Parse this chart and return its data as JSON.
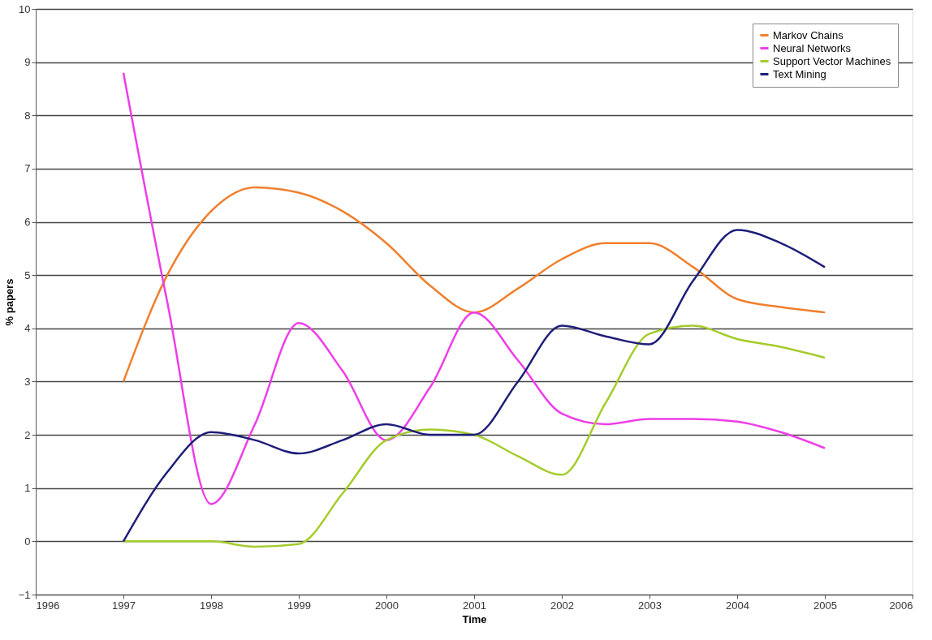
{
  "chart_data": {
    "type": "line",
    "xlabel": "Time",
    "ylabel": "% papers",
    "x": [
      1997,
      1997.5,
      1998,
      1998.5,
      1999,
      1999.5,
      2000,
      2000.5,
      2001,
      2001.5,
      2002,
      2002.5,
      2003,
      2003.5,
      2004,
      2004.5,
      2005
    ],
    "series": [
      {
        "name": "Markov Chains",
        "color": "#f07f2c",
        "values": [
          3.0,
          5.0,
          6.2,
          6.65,
          6.55,
          6.2,
          5.6,
          4.8,
          4.3,
          4.75,
          5.3,
          5.6,
          5.6,
          5.15,
          4.55,
          4.4,
          4.3
        ]
      },
      {
        "name": "Neural Networks",
        "color": "#ee3ee8",
        "values": [
          8.8,
          4.5,
          0.7,
          2.2,
          4.1,
          3.2,
          1.9,
          2.9,
          4.3,
          3.4,
          2.4,
          2.2,
          2.3,
          2.3,
          2.25,
          2.05,
          1.75
        ]
      },
      {
        "name": "Support Vector Machines",
        "color": "#a4cc2c",
        "values": [
          0,
          0,
          0,
          -0.1,
          -0.05,
          0.9,
          1.9,
          2.1,
          2.0,
          1.6,
          1.25,
          2.6,
          3.9,
          4.05,
          3.8,
          3.65,
          3.45
        ]
      },
      {
        "name": "Text Mining",
        "color": "#1e1e7a",
        "values": [
          0,
          1.3,
          2.05,
          1.9,
          1.65,
          1.9,
          2.2,
          2.0,
          2.0,
          3.0,
          4.05,
          3.85,
          3.7,
          4.9,
          5.85,
          5.6,
          5.15
        ]
      }
    ],
    "xlim": [
      1996,
      2006
    ],
    "xticks": [
      1996,
      1997,
      1998,
      1999,
      2000,
      2001,
      2002,
      2003,
      2004,
      2005,
      2006
    ],
    "ylim": [
      -1,
      10
    ],
    "yticks": [
      -1,
      0,
      1,
      2,
      3,
      4,
      5,
      6,
      7,
      8,
      9,
      10
    ],
    "grid": "y",
    "legend": "top right",
    "marker": "none",
    "line_style": "solid"
  }
}
